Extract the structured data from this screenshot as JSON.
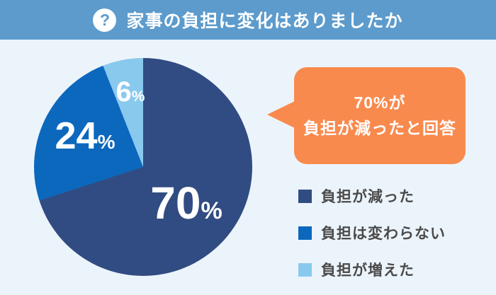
{
  "background_color": "#ecf4fb",
  "header": {
    "title": "家事の負担に変化はありましたか",
    "icon": "question-mark-icon",
    "icon_glyph": "?",
    "bg_color": "#5c9bcc",
    "text_color": "#ffffff"
  },
  "chart_data": {
    "type": "pie",
    "title": "家事の負担に変化はありましたか",
    "start_angle_deg": 0,
    "direction": "clockwise",
    "legend_position": "right",
    "slices": [
      {
        "label": "負担が減った",
        "value": 70,
        "unit": "%",
        "color": "#314c82"
      },
      {
        "label": "負担は変わらない",
        "value": 24,
        "unit": "%",
        "color": "#0c68bd"
      },
      {
        "label": "負担が増えた",
        "value": 6,
        "unit": "%",
        "color": "#8ac9ee"
      }
    ]
  },
  "callout": {
    "line1": "70%が",
    "line2": "負担が減ったと回答",
    "bg_color": "#f98a4e",
    "text_color": "#ffffff"
  }
}
